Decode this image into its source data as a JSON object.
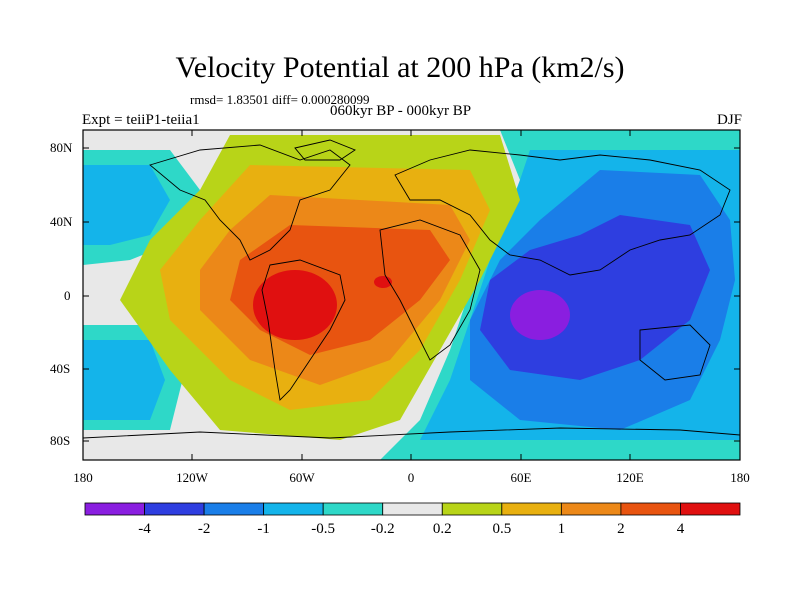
{
  "title": "Velocity Potential at 200 hPa (km2/s)",
  "stats_line": "rmsd= 1.83501 diff= 0.000280099",
  "experiment_label": "Expt = teiiP1-teiia1",
  "period_label": "060kyr BP - 000kyr BP",
  "season_label": "DJF",
  "lat_labels": [
    "80N",
    "40N",
    "0",
    "40S",
    "80S"
  ],
  "lon_labels": [
    "180",
    "120W",
    "60W",
    "0",
    "60E",
    "120E",
    "180"
  ],
  "colorbar": {
    "labels": [
      "-4",
      "-2",
      "-1",
      "-0.5",
      "-0.2",
      "0.2",
      "0.5",
      "1",
      "2",
      "4"
    ],
    "colors": [
      "#8a1ee0",
      "#2e3ee0",
      "#1a7ee8",
      "#14b4ea",
      "#2ed8c8",
      "#e8e8e8",
      "#b8d418",
      "#e8b010",
      "#ec8818",
      "#e85410",
      "#e01010"
    ]
  }
}
